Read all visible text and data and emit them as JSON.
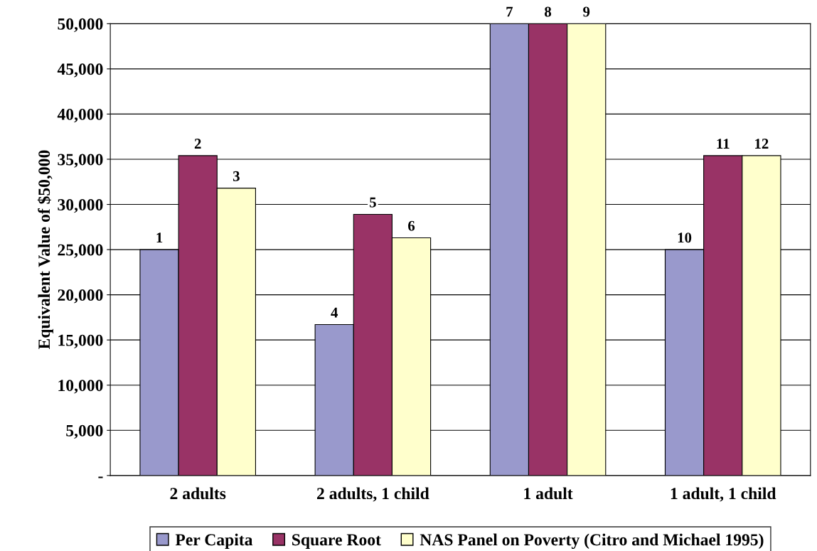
{
  "chart_data": {
    "type": "bar",
    "ylabel": "Equivalent Value of $50,000",
    "categories": [
      "2 adults",
      "2 adults, 1 child",
      "1 adult",
      "1 adult, 1 child"
    ],
    "series": [
      {
        "name": "Per Capita",
        "color": "#9999cc",
        "values": [
          25000,
          16700,
          50000,
          25000
        ]
      },
      {
        "name": "Square Root",
        "color": "#993366",
        "values": [
          35400,
          28900,
          50000,
          35400
        ]
      },
      {
        "name": "NAS Panel on Poverty (Citro and Michael 1995)",
        "color": "#ffffcc",
        "values": [
          31800,
          26300,
          50000,
          35400
        ]
      }
    ],
    "annotations": [
      "1",
      "2",
      "3",
      "4",
      "5",
      "6",
      "7",
      "8",
      "9",
      "10",
      "11",
      "12"
    ],
    "ylim": [
      0,
      50000
    ],
    "yticks": [
      {
        "value": 0,
        "label": "-"
      },
      {
        "value": 5000,
        "label": "5,000"
      },
      {
        "value": 10000,
        "label": "10,000"
      },
      {
        "value": 15000,
        "label": "15,000"
      },
      {
        "value": 20000,
        "label": "20,000"
      },
      {
        "value": 25000,
        "label": "25,000"
      },
      {
        "value": 30000,
        "label": "30,000"
      },
      {
        "value": 35000,
        "label": "35,000"
      },
      {
        "value": 40000,
        "label": "40,000"
      },
      {
        "value": 45000,
        "label": "45,000"
      },
      {
        "value": 50000,
        "label": "50,000"
      }
    ],
    "grid": "y",
    "legend": "bottom"
  }
}
